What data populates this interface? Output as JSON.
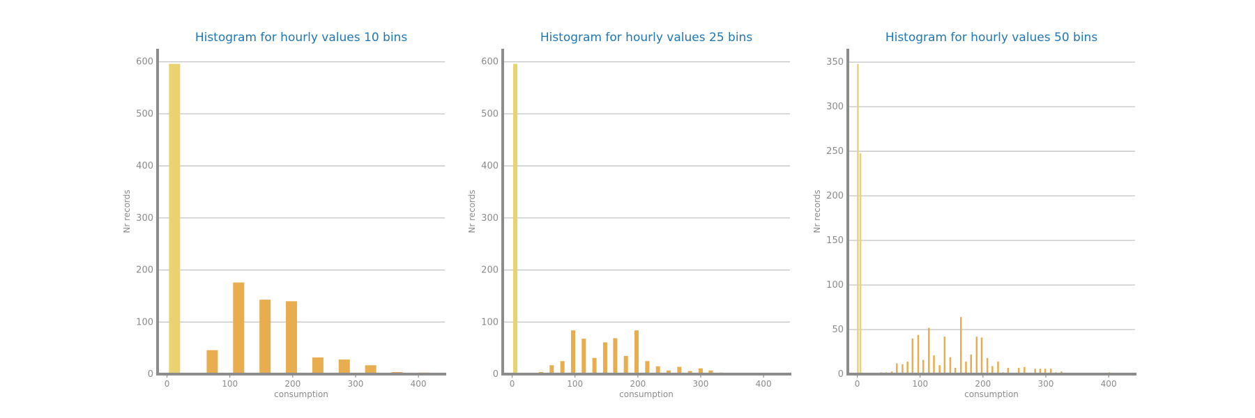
{
  "chart_data": [
    {
      "type": "bar",
      "title": "Histogram for hourly values 10 bins",
      "xlabel": "consumption",
      "ylabel": "Nr records",
      "xlim": [
        -15,
        442
      ],
      "ylim": [
        0,
        625
      ],
      "xticks": [
        0,
        100,
        200,
        300,
        400
      ],
      "yticks": [
        0,
        100,
        200,
        300,
        400,
        500,
        600
      ],
      "grid": true,
      "bar_width": 16,
      "bars": [
        {
          "x": 12,
          "value": 596,
          "color": "#ead270"
        },
        {
          "x": 72,
          "value": 46,
          "color": "#e8ad4e"
        },
        {
          "x": 114,
          "value": 176,
          "color": "#e8ad4e"
        },
        {
          "x": 156,
          "value": 143,
          "color": "#e8ad4e"
        },
        {
          "x": 198,
          "value": 140,
          "color": "#e8ad4e"
        },
        {
          "x": 240,
          "value": 32,
          "color": "#e8ad4e"
        },
        {
          "x": 282,
          "value": 28,
          "color": "#e8ad4e"
        },
        {
          "x": 324,
          "value": 17,
          "color": "#e8ad4e"
        },
        {
          "x": 366,
          "value": 4,
          "color": "#e8ad4e"
        },
        {
          "x": 408,
          "value": 3,
          "color": "#e8ad4e"
        }
      ]
    },
    {
      "type": "bar",
      "title": "Histogram for hourly values 25 bins",
      "xlabel": "consumption",
      "ylabel": "Nr records",
      "xlim": [
        -15,
        442
      ],
      "ylim": [
        0,
        625
      ],
      "xticks": [
        0,
        100,
        200,
        300,
        400
      ],
      "yticks": [
        0,
        100,
        200,
        300,
        400,
        500,
        600
      ],
      "grid": true,
      "bar_width": 6,
      "bars": [
        {
          "x": 5,
          "value": 596,
          "color": "#ead270"
        },
        {
          "x": 46,
          "value": 4,
          "color": "#e8ad4e"
        },
        {
          "x": 63,
          "value": 17,
          "color": "#e8ad4e"
        },
        {
          "x": 80,
          "value": 25,
          "color": "#e8ad4e"
        },
        {
          "x": 97,
          "value": 84,
          "color": "#e8ad4e"
        },
        {
          "x": 114,
          "value": 68,
          "color": "#e8ad4e"
        },
        {
          "x": 131,
          "value": 31,
          "color": "#e8ad4e"
        },
        {
          "x": 148,
          "value": 61,
          "color": "#e8ad4e"
        },
        {
          "x": 164,
          "value": 69,
          "color": "#e8ad4e"
        },
        {
          "x": 181,
          "value": 35,
          "color": "#e8ad4e"
        },
        {
          "x": 198,
          "value": 84,
          "color": "#e8ad4e"
        },
        {
          "x": 215,
          "value": 25,
          "color": "#e8ad4e"
        },
        {
          "x": 232,
          "value": 15,
          "color": "#e8ad4e"
        },
        {
          "x": 249,
          "value": 7,
          "color": "#e8ad4e"
        },
        {
          "x": 266,
          "value": 14,
          "color": "#e8ad4e"
        },
        {
          "x": 283,
          "value": 6,
          "color": "#e8ad4e"
        },
        {
          "x": 300,
          "value": 11,
          "color": "#e8ad4e"
        },
        {
          "x": 316,
          "value": 7,
          "color": "#e8ad4e"
        },
        {
          "x": 333,
          "value": 3,
          "color": "#e8ad4e"
        }
      ]
    },
    {
      "type": "bar",
      "title": "Histogram for hourly values 50 bins",
      "xlabel": "consumption",
      "ylabel": "Nr records",
      "xlim": [
        -15,
        442
      ],
      "ylim": [
        0,
        365
      ],
      "xticks": [
        0,
        100,
        200,
        300,
        400
      ],
      "yticks": [
        0,
        50,
        100,
        150,
        200,
        250,
        300,
        350
      ],
      "grid": true,
      "bar_width": 2.5,
      "bars": [
        {
          "x": 1,
          "value": 348,
          "color": "#ead270"
        },
        {
          "x": 5,
          "value": 248,
          "color": "#ead270"
        },
        {
          "x": 38,
          "value": 2,
          "color": "#e8ad4e"
        },
        {
          "x": 46,
          "value": 2,
          "color": "#e8ad4e"
        },
        {
          "x": 55,
          "value": 3,
          "color": "#e8ad4e"
        },
        {
          "x": 63,
          "value": 12,
          "color": "#e8ad4e"
        },
        {
          "x": 72,
          "value": 11,
          "color": "#e8ad4e"
        },
        {
          "x": 80,
          "value": 14,
          "color": "#e8ad4e"
        },
        {
          "x": 88,
          "value": 40,
          "color": "#e8ad4e"
        },
        {
          "x": 97,
          "value": 44,
          "color": "#e8ad4e"
        },
        {
          "x": 105,
          "value": 16,
          "color": "#e8ad4e"
        },
        {
          "x": 114,
          "value": 52,
          "color": "#e8ad4e"
        },
        {
          "x": 122,
          "value": 21,
          "color": "#e8ad4e"
        },
        {
          "x": 131,
          "value": 10,
          "color": "#e8ad4e"
        },
        {
          "x": 139,
          "value": 42,
          "color": "#e8ad4e"
        },
        {
          "x": 148,
          "value": 19,
          "color": "#e8ad4e"
        },
        {
          "x": 156,
          "value": 7,
          "color": "#e8ad4e"
        },
        {
          "x": 165,
          "value": 64,
          "color": "#e8ad4e"
        },
        {
          "x": 173,
          "value": 14,
          "color": "#e8ad4e"
        },
        {
          "x": 181,
          "value": 22,
          "color": "#e8ad4e"
        },
        {
          "x": 190,
          "value": 42,
          "color": "#e8ad4e"
        },
        {
          "x": 198,
          "value": 41,
          "color": "#e8ad4e"
        },
        {
          "x": 207,
          "value": 18,
          "color": "#e8ad4e"
        },
        {
          "x": 215,
          "value": 9,
          "color": "#e8ad4e"
        },
        {
          "x": 224,
          "value": 14,
          "color": "#e8ad4e"
        },
        {
          "x": 232,
          "value": 2,
          "color": "#e8ad4e"
        },
        {
          "x": 240,
          "value": 7,
          "color": "#e8ad4e"
        },
        {
          "x": 257,
          "value": 7,
          "color": "#e8ad4e"
        },
        {
          "x": 266,
          "value": 8,
          "color": "#e8ad4e"
        },
        {
          "x": 283,
          "value": 6,
          "color": "#e8ad4e"
        },
        {
          "x": 291,
          "value": 6,
          "color": "#e8ad4e"
        },
        {
          "x": 299,
          "value": 6,
          "color": "#e8ad4e"
        },
        {
          "x": 308,
          "value": 6,
          "color": "#e8ad4e"
        },
        {
          "x": 316,
          "value": 2,
          "color": "#e8ad4e"
        },
        {
          "x": 325,
          "value": 3,
          "color": "#e8ad4e"
        },
        {
          "x": 359,
          "value": 1,
          "color": "#e8ad4e"
        },
        {
          "x": 401,
          "value": 2,
          "color": "#e8ad4e"
        }
      ]
    }
  ]
}
